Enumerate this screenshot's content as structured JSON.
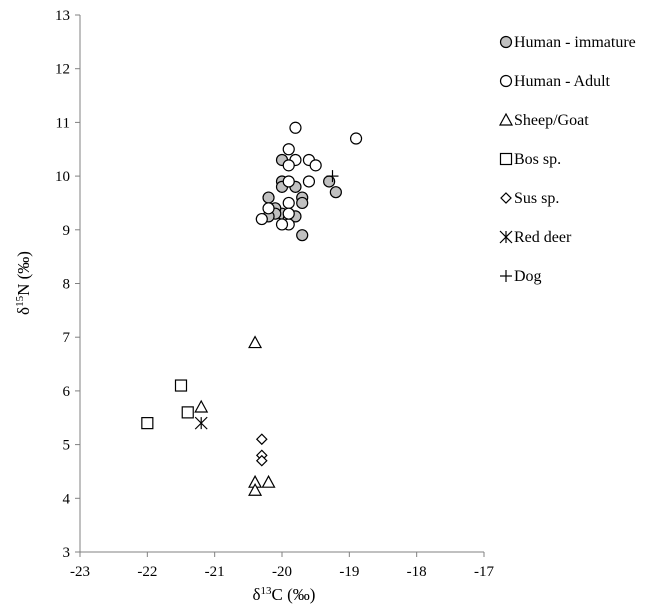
{
  "chart_data": {
    "type": "scatter",
    "xlabel": "δ13C (‰)",
    "xlabel_parts": {
      "prefix": "δ",
      "sup": "13",
      "suffix": "C (‰)"
    },
    "ylabel": "δ15N (‰)",
    "ylabel_parts": {
      "prefix": "δ",
      "sup": "15",
      "suffix": "N (‰)"
    },
    "xlim": [
      -23,
      -17
    ],
    "ylim": [
      3,
      13
    ],
    "xticks": [
      -23,
      -22,
      -21,
      -20,
      -19,
      -18,
      -17
    ],
    "yticks": [
      3,
      4,
      5,
      6,
      7,
      8,
      9,
      10,
      11,
      12,
      13
    ],
    "grid": false,
    "legend_position": "right",
    "series": [
      {
        "name": "Human - immature",
        "marker": "circle-filled",
        "color": "#c0c0c0",
        "points": [
          [
            -19.8,
            9.8
          ],
          [
            -19.9,
            9.3
          ],
          [
            -20.0,
            9.3
          ],
          [
            -20.1,
            9.4
          ],
          [
            -20.0,
            9.9
          ],
          [
            -19.7,
            9.6
          ],
          [
            -19.7,
            9.5
          ],
          [
            -19.9,
            9.2
          ],
          [
            -20.2,
            9.6
          ],
          [
            -20.0,
            9.8
          ],
          [
            -19.8,
            9.25
          ],
          [
            -20.1,
            9.3
          ],
          [
            -19.3,
            9.9
          ],
          [
            -19.2,
            9.7
          ],
          [
            -19.7,
            8.9
          ],
          [
            -20.0,
            10.3
          ],
          [
            -20.2,
            9.25
          ]
        ]
      },
      {
        "name": "Human - Adult",
        "marker": "circle-open",
        "color": "#ffffff",
        "points": [
          [
            -19.8,
            10.9
          ],
          [
            -18.9,
            10.7
          ],
          [
            -19.9,
            10.5
          ],
          [
            -19.8,
            10.3
          ],
          [
            -19.6,
            10.3
          ],
          [
            -19.5,
            10.2
          ],
          [
            -19.9,
            10.2
          ],
          [
            -19.6,
            9.9
          ],
          [
            -19.9,
            9.9
          ],
          [
            -20.3,
            9.2
          ],
          [
            -19.9,
            9.5
          ],
          [
            -19.9,
            9.1
          ],
          [
            -20.0,
            9.1
          ],
          [
            -20.2,
            9.4
          ],
          [
            -19.9,
            9.3
          ]
        ]
      },
      {
        "name": "Sheep/Goat",
        "marker": "triangle",
        "color": "#ffffff",
        "points": [
          [
            -20.4,
            6.9
          ],
          [
            -21.2,
            5.7
          ],
          [
            -20.4,
            4.3
          ],
          [
            -20.2,
            4.3
          ],
          [
            -20.4,
            4.15
          ]
        ]
      },
      {
        "name": "Bos sp.",
        "marker": "square",
        "color": "#ffffff",
        "points": [
          [
            -21.5,
            6.1
          ],
          [
            -21.4,
            5.6
          ],
          [
            -22.0,
            5.4
          ]
        ]
      },
      {
        "name": "Sus sp.",
        "marker": "diamond",
        "color": "#ffffff",
        "points": [
          [
            -20.3,
            5.1
          ],
          [
            -20.3,
            4.8
          ],
          [
            -20.3,
            4.7
          ]
        ]
      },
      {
        "name": "Red deer",
        "marker": "star",
        "color": "#000000",
        "points": [
          [
            -21.2,
            5.4
          ]
        ]
      },
      {
        "name": "Dog",
        "marker": "plus",
        "color": "#000000",
        "points": [
          [
            -19.25,
            10.0
          ]
        ]
      }
    ]
  }
}
